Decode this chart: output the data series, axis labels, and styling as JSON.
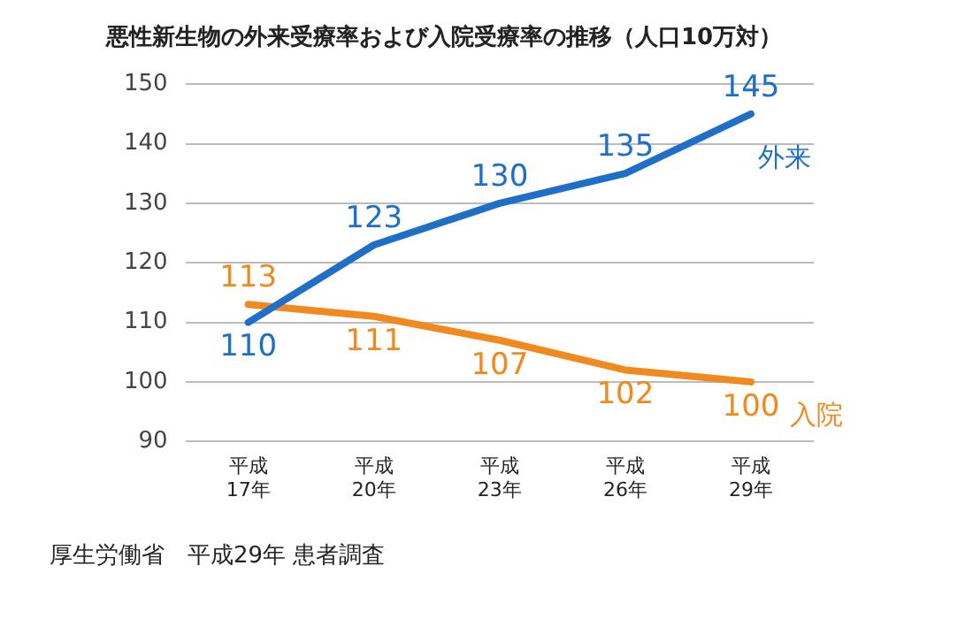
{
  "chart_data": {
    "type": "line",
    "title": "悪性新生物の外来受療率および入院受療率の推移（人口10万対）",
    "categories": [
      "平成\n17年",
      "平成\n20年",
      "平成\n23年",
      "平成\n26年",
      "平成\n29年"
    ],
    "series": [
      {
        "name": "外来",
        "color": "#1f6fc8",
        "values": [
          110,
          123,
          130,
          135,
          145
        ]
      },
      {
        "name": "入院",
        "color": "#f0891e",
        "values": [
          113,
          111,
          107,
          102,
          100
        ]
      }
    ],
    "ylim": [
      90,
      150
    ],
    "yticks": [
      90,
      100,
      110,
      120,
      130,
      140,
      150
    ],
    "grid": "y",
    "legend": false,
    "marker": "none",
    "line_style": "solid",
    "data_labels": true,
    "annotations": [
      "厚生労働省　平成29年 患者調査"
    ]
  }
}
